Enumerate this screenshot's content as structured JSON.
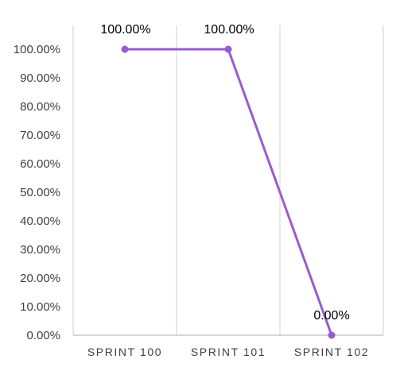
{
  "chart_data": {
    "type": "line",
    "categories": [
      "SPRINT 100",
      "SPRINT 101",
      "SPRINT 102"
    ],
    "series": [
      {
        "values": [
          100,
          100,
          0
        ],
        "data_labels": [
          "100.00%",
          "100.00%",
          "0.00%"
        ],
        "color": "#9a5bd0"
      }
    ],
    "ylim": [
      0,
      100
    ],
    "yticks": [
      0,
      10,
      20,
      30,
      40,
      50,
      60,
      70,
      80,
      90,
      100
    ],
    "ytick_labels": [
      "0.00%",
      "10.00%",
      "20.00%",
      "30.00%",
      "40.00%",
      "50.00%",
      "60.00%",
      "70.00%",
      "80.00%",
      "90.00%",
      "100.00%"
    ],
    "grid": "vertical",
    "gridline_color": "#d9d9d9",
    "axis_color": "#bfbfbf",
    "legend": "none"
  }
}
